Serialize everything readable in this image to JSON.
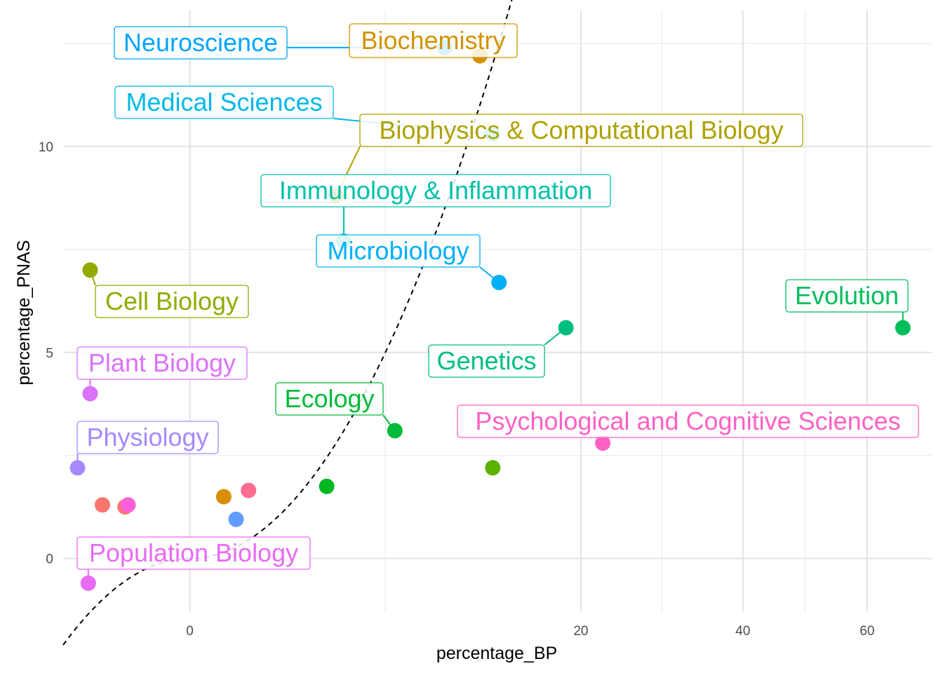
{
  "chart_data": {
    "type": "scatter",
    "xlabel": "percentage_BP",
    "ylabel": "percentage_PNAS",
    "x_scale": "sqrt",
    "x_ticks": [
      0,
      20,
      40,
      60
    ],
    "y_ticks": [
      0,
      5,
      10
    ],
    "xlim": [
      -2.1,
      72
    ],
    "ylim": [
      -1.3,
      13.3
    ],
    "grid": true,
    "legend": "none",
    "reference_line": {
      "style": "dashed",
      "color": "#000000",
      "slope": 1,
      "intercept": 0
    },
    "points": [
      {
        "label": "Neuroscience",
        "x": 8.5,
        "y": 12.4,
        "color": "#00A5FF"
      },
      {
        "label": "Biochemistry",
        "x": 11.0,
        "y": 12.2,
        "color": "#D39200"
      },
      {
        "label": "Medical Sciences",
        "x": 12.0,
        "y": 10.3,
        "color": "#00B8E7"
      },
      {
        "label": "Biophysics & Computational Biology",
        "x": 2.8,
        "y": 8.8,
        "color": "#AEA200"
      },
      {
        "label": "Immunology & Inflammation",
        "x": 3.1,
        "y": 7.7,
        "color": "#00C1A9"
      },
      {
        "label": "Microbiology",
        "x": 12.5,
        "y": 6.7,
        "color": "#00B0F6"
      },
      {
        "label": "Cell Biology",
        "x": -1.3,
        "y": 7.0,
        "color": "#93AA00"
      },
      {
        "label": "Evolution",
        "x": 66.5,
        "y": 5.6,
        "color": "#00BD5C"
      },
      {
        "label": "Genetics",
        "x": 18.5,
        "y": 5.6,
        "color": "#00BF7D"
      },
      {
        "label": "Plant Biology",
        "x": -1.3,
        "y": 4.0,
        "color": "#DB72FB"
      },
      {
        "label": "Ecology",
        "x": 5.5,
        "y": 3.1,
        "color": "#00BA38"
      },
      {
        "label": "Psychological and Cognitive Sciences",
        "x": 22.3,
        "y": 2.8,
        "color": "#FF61C3"
      },
      {
        "label": "Physiology",
        "x": -1.65,
        "y": 2.2,
        "color": "#A58AFF"
      },
      {
        "label": "Population Biology",
        "x": -1.35,
        "y": -0.6,
        "color": "#E76BF3"
      },
      {
        "label": "",
        "x": 12.0,
        "y": 2.2,
        "color": "#5BB300"
      },
      {
        "label": "",
        "x": 2.45,
        "y": 1.75,
        "color": "#00B81F"
      },
      {
        "label": "",
        "x": 0.45,
        "y": 1.65,
        "color": "#FF6C91"
      },
      {
        "label": "",
        "x": 0.15,
        "y": 1.5,
        "color": "#DB8E00"
      },
      {
        "label": "",
        "x": 0.28,
        "y": 0.95,
        "color": "#619CFF"
      },
      {
        "label": "",
        "x": -1.0,
        "y": 1.3,
        "color": "#F8766D"
      },
      {
        "label": "",
        "x": -0.55,
        "y": 1.25,
        "color": "#F8766D"
      },
      {
        "label": "",
        "x": -0.5,
        "y": 1.3,
        "color": "#FB61D7"
      }
    ]
  }
}
